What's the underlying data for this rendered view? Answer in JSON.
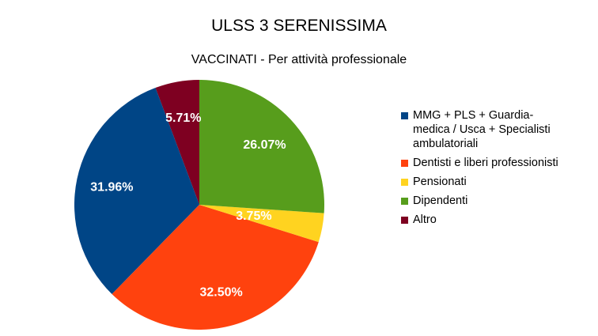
{
  "chart_data": {
    "type": "pie",
    "title": "ULSS 3 SERENISSIMA",
    "subtitle": "VACCINATI - Per attività professionale",
    "legend_position": "right",
    "slices": [
      {
        "label": "MMG + PLS + Guardia-medica / Usca + Specialisti ambulatoriali",
        "legend_lines": [
          "MMG + PLS + Guardia-",
          "medica / Usca + Specialisti",
          "ambulatoriali"
        ],
        "value": 31.96,
        "display": "31.96%",
        "color": "#004586"
      },
      {
        "label": "Dentisti e liberi professionisti",
        "legend_lines": [
          "Dentisti e liberi professionisti"
        ],
        "value": 32.5,
        "display": "32.50%",
        "color": "#ff420e"
      },
      {
        "label": "Pensionati",
        "legend_lines": [
          "Pensionati"
        ],
        "value": 3.75,
        "display": "3.75%",
        "color": "#ffd320"
      },
      {
        "label": "Dipendenti",
        "legend_lines": [
          "Dipendenti"
        ],
        "value": 26.07,
        "display": "26.07%",
        "color": "#579d1c"
      },
      {
        "label": "Altro",
        "legend_lines": [
          "Altro"
        ],
        "value": 5.71,
        "display": "5.71%",
        "color": "#7e0021"
      }
    ]
  }
}
